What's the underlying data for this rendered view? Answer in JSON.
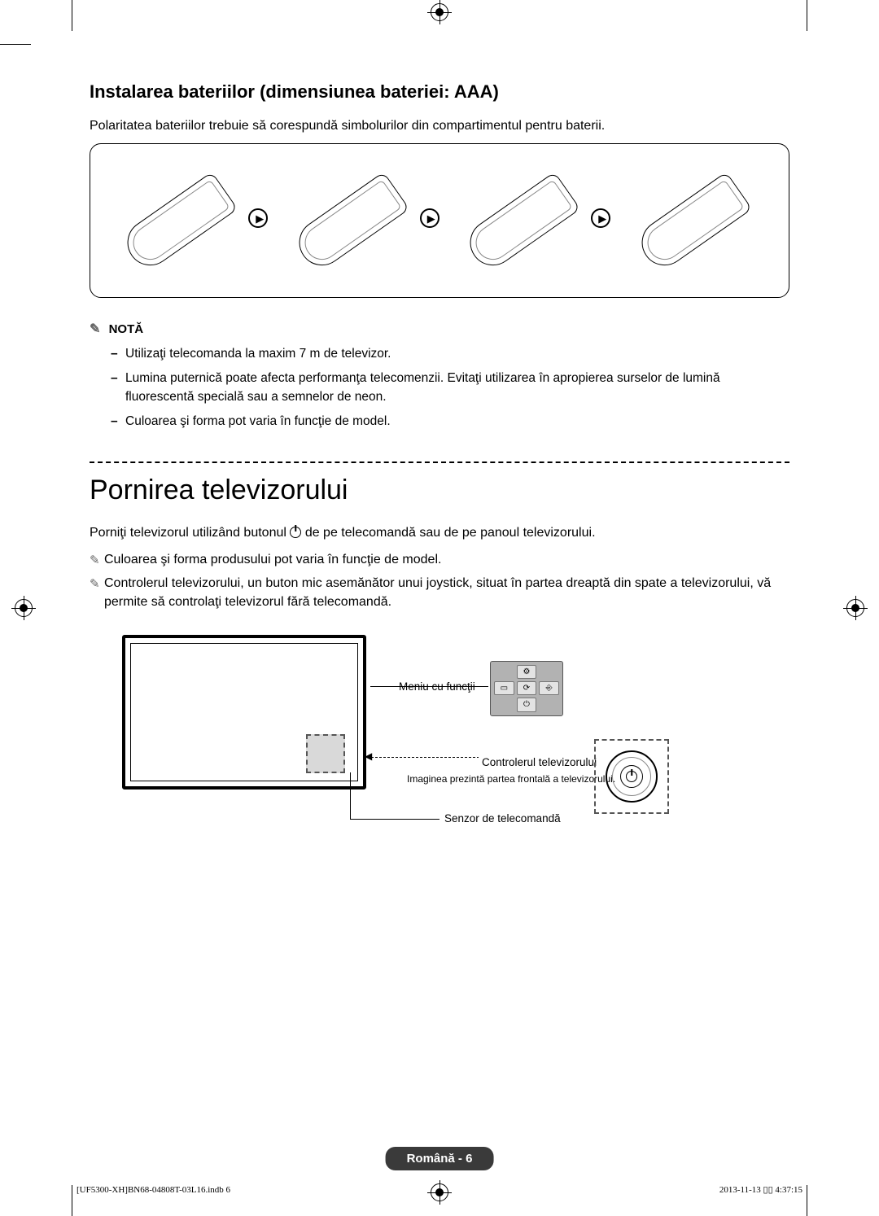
{
  "section1": {
    "title": "Instalarea bateriilor (dimensiunea bateriei: AAA)",
    "intro": "Polaritatea bateriilor trebuie să corespundă simbolurilor din compartimentul pentru baterii.",
    "noteLabel": "NOTĂ",
    "notes": [
      "Utilizaţi telecomanda la maxim 7 m de televizor.",
      "Lumina puternică poate afecta performanţa telecomenzii. Evitaţi utilizarea în apropierea surselor de lumină fluorescentă specială sau a semnelor de neon.",
      "Culoarea şi forma pot varia în funcţie de model."
    ]
  },
  "section2": {
    "heading": "Pornirea televizorului",
    "introPrefix": "Porniţi televizorul utilizând butonul ",
    "introSuffix": " de pe telecomandă sau de pe panoul televizorului.",
    "bullets": [
      "Culoarea şi forma produsului pot varia în funcţie de model.",
      "Controlerul televizorului, un buton mic asemănător unui joystick, situat în partea dreaptă din spate a televizorului, vă permite să controlaţi televizorul fără telecomandă."
    ],
    "diagram": {
      "menuLabel": "Meniu cu funcţii",
      "controllerLabel": "Controlerul televizorului",
      "controllerSub": "Imaginea prezintă partea frontală a televizorului.",
      "sensorLabel": "Senzor de telecomandă"
    }
  },
  "footer": {
    "badge": "Română - 6",
    "left": "[UF5300-XH]BN68-04808T-03L16.indb   6",
    "right": "2013-11-13   ▯▯ 4:37:15"
  },
  "colors": {
    "text": "#000000",
    "greyPanel": "#b2b2b2",
    "greyBtn": "#e3e3e3",
    "sensor": "#d9d9d9",
    "badgeBg": "#3a3a3a",
    "noteIcon": "#666666"
  }
}
